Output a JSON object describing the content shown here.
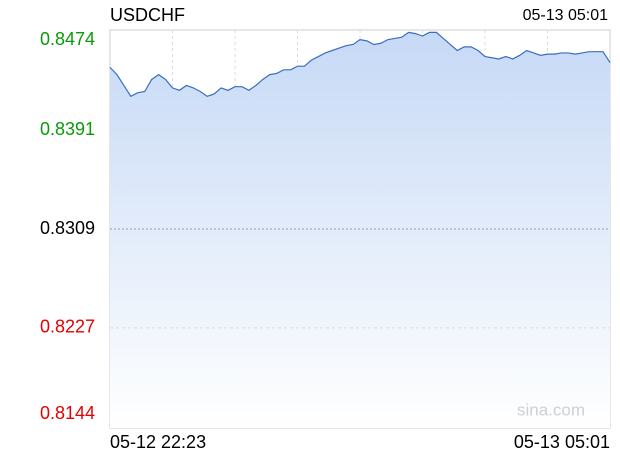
{
  "chart_data": {
    "type": "line",
    "title": "USDCHF",
    "timestamp": "05-13 05:01",
    "watermark": "sina.com",
    "categories": [
      "05-12 22:23",
      null,
      null,
      null,
      null,
      null,
      null,
      null,
      null,
      null,
      null,
      null,
      null,
      null,
      null,
      null,
      null,
      null,
      null,
      null,
      null,
      null,
      null,
      null,
      null,
      null,
      null,
      null,
      null,
      null,
      null,
      null,
      null,
      null,
      null,
      null,
      null,
      null,
      null,
      null,
      null,
      null,
      null,
      null,
      null,
      null,
      null,
      null,
      null,
      null,
      null,
      null,
      null,
      null,
      null,
      null,
      null,
      null,
      null,
      null,
      null,
      null,
      null,
      null,
      null,
      null,
      null,
      null,
      null,
      null,
      null,
      null,
      "05-13 05:01"
    ],
    "values": [
      0.8443,
      0.8437,
      0.8428,
      0.8419,
      0.8422,
      0.8423,
      0.8433,
      0.8437,
      0.8433,
      0.8426,
      0.8424,
      0.8428,
      0.8426,
      0.8423,
      0.8419,
      0.8421,
      0.8426,
      0.8424,
      0.8427,
      0.8427,
      0.8424,
      0.8428,
      0.8433,
      0.8437,
      0.8438,
      0.8441,
      0.8441,
      0.8444,
      0.8444,
      0.8449,
      0.8452,
      0.8455,
      0.8457,
      0.8459,
      0.8461,
      0.8462,
      0.8466,
      0.8465,
      0.8462,
      0.8463,
      0.8466,
      0.8467,
      0.8468,
      0.8472,
      0.8471,
      0.8469,
      0.8472,
      0.8472,
      0.8467,
      0.8462,
      0.8457,
      0.846,
      0.846,
      0.8457,
      0.8452,
      0.8451,
      0.845,
      0.8452,
      0.845,
      0.8453,
      0.8457,
      0.8455,
      0.8453,
      0.8454,
      0.8454,
      0.8455,
      0.8455,
      0.8454,
      0.8455,
      0.8456,
      0.8456,
      0.8456,
      0.8447
    ],
    "color": "#3b6dc0",
    "ylim": [
      0.8144,
      0.8474
    ],
    "yticks": [
      0.8144,
      0.8227,
      0.8309,
      0.8391,
      0.8474
    ],
    "grid": true
  }
}
